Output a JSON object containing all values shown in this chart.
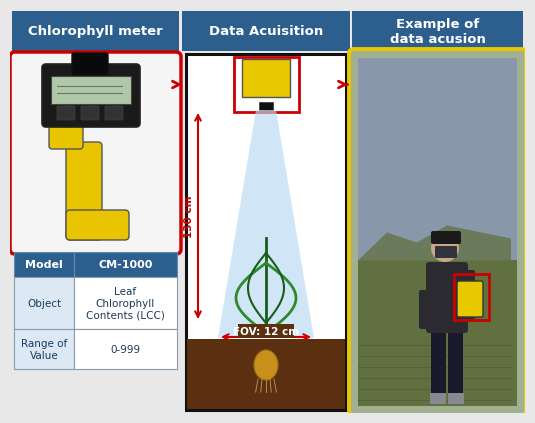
{
  "title1": "Chlorophyll meter",
  "title2": "Data Acuisition",
  "title3": "Example of\ndata acusion",
  "header_bg": "#2d5f8e",
  "header_text_color": "#ffffff",
  "table_rows": [
    [
      "Model",
      "CM-1000"
    ],
    [
      "Object",
      "Leaf\nChlorophyll\nContents (LCC)"
    ],
    [
      "Range of\nValue",
      "0-999"
    ]
  ],
  "table_header_bg": "#2d5f8e",
  "table_row_bg": "#dce9f5",
  "table_text_color": "#1a3a5c",
  "red_color": "#cc0000",
  "yellow_color": "#e8c800",
  "black_color": "#111111",
  "sensor_yellow": "#e8c800",
  "fov_label": "FOV: 12 cm",
  "height_label": "130 cm",
  "soil_color": "#5a3010",
  "plant_dark": "#1a5c1a",
  "plant_mid": "#2d8a2d",
  "light_cone_color": "#b8d8f0",
  "bg_color": "#e8e8e8",
  "onion_color": "#c8901a",
  "photo_bg": "#a0b090",
  "photo_sky": "#8090a0",
  "photo_field": "#607040"
}
